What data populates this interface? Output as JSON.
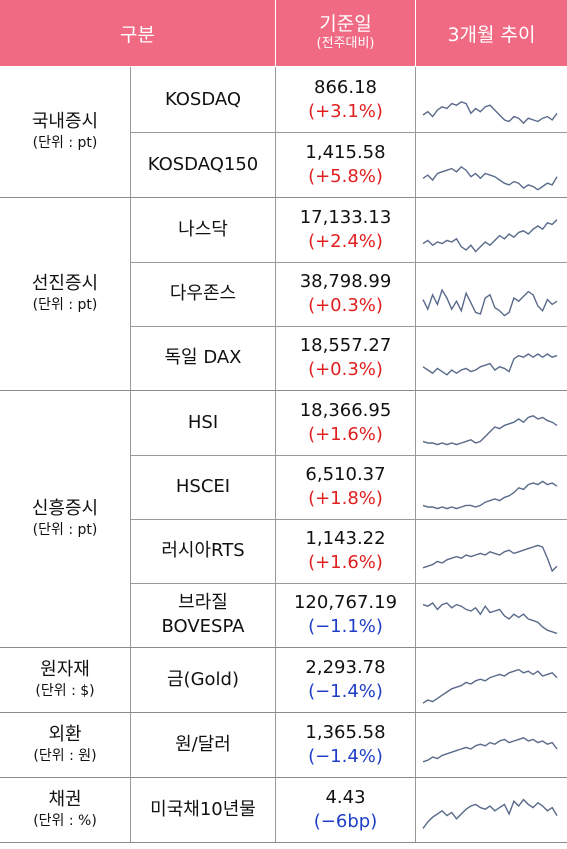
{
  "header": {
    "category_label": "구분",
    "base_label": "기준일",
    "base_sub_label": "(전주대비)",
    "trend_label": "3개월 추이"
  },
  "colors": {
    "header_bg": "#f06a84",
    "up": "#e02020",
    "down": "#1e3ec8",
    "sparkline": "#5a6a8a"
  },
  "groups": [
    {
      "name": "국내증시",
      "unit": "(단위 : pt)",
      "rows": [
        {
          "name": "KOSDAQ",
          "value": "866.18",
          "change": "(+3.1%)",
          "dir": "up",
          "trend": [
            54,
            50,
            56,
            48,
            44,
            46,
            40,
            42,
            38,
            40,
            52,
            46,
            50,
            44,
            42,
            48,
            54,
            60,
            62,
            56,
            58,
            64,
            58,
            60,
            62,
            58,
            56,
            60,
            52
          ]
        },
        {
          "name": "KOSDAQ150",
          "value": "1,415.58",
          "change": "(+5.8%)",
          "dir": "up",
          "trend": [
            52,
            48,
            54,
            46,
            44,
            42,
            40,
            44,
            38,
            42,
            50,
            46,
            52,
            46,
            48,
            50,
            54,
            58,
            60,
            56,
            58,
            64,
            60,
            62,
            66,
            62,
            58,
            60,
            50
          ]
        }
      ]
    },
    {
      "name": "선진증시",
      "unit": "(단위 : pt)",
      "rows": [
        {
          "name": "나스닥",
          "value": "17,133.13",
          "change": "(+2.4%)",
          "dir": "up",
          "trend": [
            52,
            48,
            54,
            50,
            52,
            48,
            50,
            46,
            56,
            60,
            54,
            62,
            56,
            50,
            54,
            48,
            42,
            46,
            40,
            44,
            38,
            36,
            40,
            34,
            30,
            34,
            26,
            28,
            22
          ]
        },
        {
          "name": "다우존스",
          "value": "38,798.99",
          "change": "(+0.3%)",
          "dir": "up",
          "trend": [
            42,
            54,
            36,
            48,
            30,
            40,
            54,
            44,
            56,
            34,
            46,
            58,
            60,
            40,
            36,
            52,
            56,
            62,
            58,
            40,
            44,
            38,
            32,
            36,
            50,
            56,
            42,
            48,
            44
          ]
        },
        {
          "name": "독일 DAX",
          "value": "18,557.27",
          "change": "(+0.3%)",
          "dir": "up",
          "trend": [
            46,
            50,
            54,
            48,
            52,
            56,
            50,
            54,
            50,
            48,
            52,
            50,
            46,
            44,
            42,
            50,
            46,
            48,
            52,
            36,
            32,
            34,
            30,
            34,
            30,
            34,
            30,
            34,
            32
          ]
        }
      ]
    },
    {
      "name": "신흥증시",
      "unit": "(단위 : pt)",
      "rows": [
        {
          "name": "HSI",
          "value": "18,366.95",
          "change": "(+1.6%)",
          "dir": "up",
          "trend": [
            58,
            60,
            60,
            62,
            60,
            62,
            60,
            62,
            60,
            58,
            56,
            60,
            58,
            52,
            46,
            40,
            42,
            38,
            36,
            34,
            30,
            34,
            28,
            26,
            30,
            28,
            32,
            34,
            38
          ]
        },
        {
          "name": "HSCEI",
          "value": "6,510.37",
          "change": "(+1.8%)",
          "dir": "up",
          "trend": [
            58,
            60,
            60,
            62,
            60,
            62,
            60,
            62,
            60,
            58,
            58,
            60,
            58,
            54,
            52,
            50,
            52,
            48,
            46,
            42,
            36,
            38,
            32,
            30,
            32,
            28,
            32,
            30,
            34
          ]
        },
        {
          "name": "러시아RTS",
          "value": "1,143.22",
          "change": "(+1.6%)",
          "dir": "up",
          "trend": [
            56,
            54,
            52,
            48,
            50,
            46,
            44,
            42,
            44,
            40,
            42,
            40,
            38,
            40,
            36,
            38,
            40,
            36,
            34,
            38,
            36,
            34,
            32,
            30,
            28,
            30,
            44,
            60,
            54
          ]
        },
        {
          "name": "브라질\nBOVESPA",
          "value": "120,767.19",
          "change": "(−1.1%)",
          "dir": "down",
          "trend": [
            22,
            24,
            20,
            28,
            22,
            20,
            26,
            22,
            24,
            28,
            30,
            26,
            34,
            24,
            32,
            30,
            28,
            36,
            40,
            34,
            38,
            34,
            40,
            42,
            44,
            50,
            54,
            56,
            58
          ]
        }
      ]
    },
    {
      "name": "원자재",
      "unit": "(단위 : $)",
      "rows": [
        {
          "name": "금(Gold)",
          "value": "2,293.78",
          "change": "(−1.4%)",
          "dir": "down",
          "trend": [
            64,
            60,
            62,
            58,
            54,
            50,
            46,
            44,
            42,
            38,
            40,
            36,
            34,
            36,
            32,
            30,
            28,
            30,
            26,
            24,
            22,
            26,
            24,
            28,
            24,
            30,
            28,
            26,
            32
          ]
        }
      ]
    },
    {
      "name": "외환",
      "unit": "(단위 : 원)",
      "rows": [
        {
          "name": "원/달러",
          "value": "1,365.58",
          "change": "(−1.4%)",
          "dir": "down",
          "trend": [
            56,
            54,
            50,
            52,
            48,
            46,
            44,
            42,
            40,
            38,
            40,
            36,
            34,
            36,
            32,
            34,
            30,
            28,
            32,
            30,
            28,
            26,
            30,
            28,
            32,
            30,
            34,
            32,
            40
          ]
        }
      ]
    },
    {
      "name": "채권",
      "unit": "(단위 : %)",
      "rows": [
        {
          "name": "미국채10년물",
          "value": "4.43",
          "change": "(−6bp)",
          "dir": "down",
          "trend": [
            58,
            50,
            44,
            40,
            36,
            42,
            38,
            46,
            40,
            34,
            30,
            28,
            32,
            34,
            30,
            36,
            32,
            28,
            40,
            24,
            30,
            22,
            28,
            32,
            26,
            30,
            36,
            32,
            42
          ]
        }
      ]
    }
  ]
}
